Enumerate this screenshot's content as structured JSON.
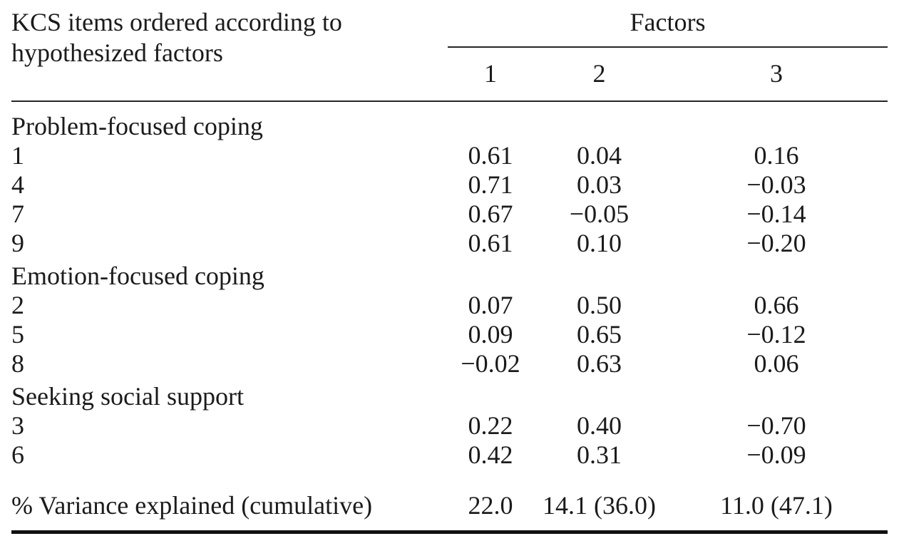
{
  "table": {
    "stub_header": "KCS items ordered according to hypothesized factors",
    "spanner_label": "Factors",
    "column_headers": [
      "1",
      "2",
      "3"
    ],
    "sections": [
      {
        "label": "Problem-focused coping",
        "rows": [
          {
            "item": "1",
            "values": [
              "0.61",
              "0.04",
              "0.16"
            ]
          },
          {
            "item": "4",
            "values": [
              "0.71",
              "0.03",
              "−0.03"
            ]
          },
          {
            "item": "7",
            "values": [
              "0.67",
              "−0.05",
              "−0.14"
            ]
          },
          {
            "item": "9",
            "values": [
              "0.61",
              "0.10",
              "−0.20"
            ]
          }
        ]
      },
      {
        "label": "Emotion-focused coping",
        "rows": [
          {
            "item": "2",
            "values": [
              "0.07",
              "0.50",
              "0.66"
            ]
          },
          {
            "item": "5",
            "values": [
              "0.09",
              "0.65",
              "−0.12"
            ]
          },
          {
            "item": "8",
            "values": [
              "−0.02",
              "0.63",
              "0.06"
            ]
          }
        ]
      },
      {
        "label": "Seeking social support",
        "rows": [
          {
            "item": "3",
            "values": [
              "0.22",
              "0.40",
              "−0.70"
            ]
          },
          {
            "item": "6",
            "values": [
              "0.42",
              "0.31",
              "−0.09"
            ]
          }
        ]
      }
    ],
    "footer": {
      "label": "% Variance explained (cumulative)",
      "values": [
        "22.0",
        "14.1 (36.0)",
        "11.0 (47.1)"
      ]
    },
    "colors": {
      "text": "#1b1b1b",
      "rule": "#262626",
      "bottom_rule": "#111111",
      "background": "#ffffff"
    }
  }
}
